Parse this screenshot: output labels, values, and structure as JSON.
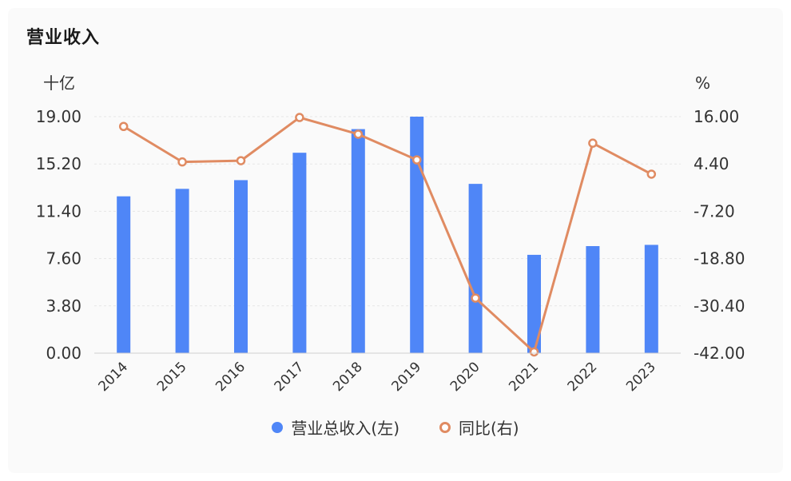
{
  "title": "营业收入",
  "colors": {
    "bar": "#4f86f7",
    "line": "#e08b62",
    "axis_text": "#333333",
    "grid": "#e6e6e6"
  },
  "legend": {
    "bar_label": "营业总收入(左)",
    "line_label": "同比(右)"
  },
  "chart_data": {
    "type": "bar",
    "title": "营业收入",
    "categories": [
      "2014",
      "2015",
      "2016",
      "2017",
      "2018",
      "2019",
      "2020",
      "2021",
      "2022",
      "2023"
    ],
    "y_left": {
      "unit": "十亿",
      "ticks": [
        "0.00",
        "3.80",
        "7.60",
        "11.40",
        "15.20",
        "19.00"
      ],
      "ylim": [
        0,
        19
      ]
    },
    "y_right": {
      "unit": "%",
      "ticks": [
        "-42.00",
        "-30.40",
        "-18.80",
        "-7.20",
        "4.40",
        "16.00"
      ],
      "ylim": [
        -42,
        16
      ]
    },
    "series": [
      {
        "name": "营业总收入(左)",
        "type": "bar",
        "axis": "left",
        "values": [
          12.6,
          13.2,
          13.9,
          16.1,
          18.0,
          19.0,
          13.6,
          7.9,
          8.6,
          8.7
        ]
      },
      {
        "name": "同比(右)",
        "type": "line",
        "axis": "right",
        "values": [
          13.6,
          4.9,
          5.2,
          15.8,
          11.7,
          5.4,
          -28.5,
          -41.7,
          9.5,
          1.9
        ]
      }
    ],
    "grid": true,
    "legend_position": "bottom-center"
  }
}
